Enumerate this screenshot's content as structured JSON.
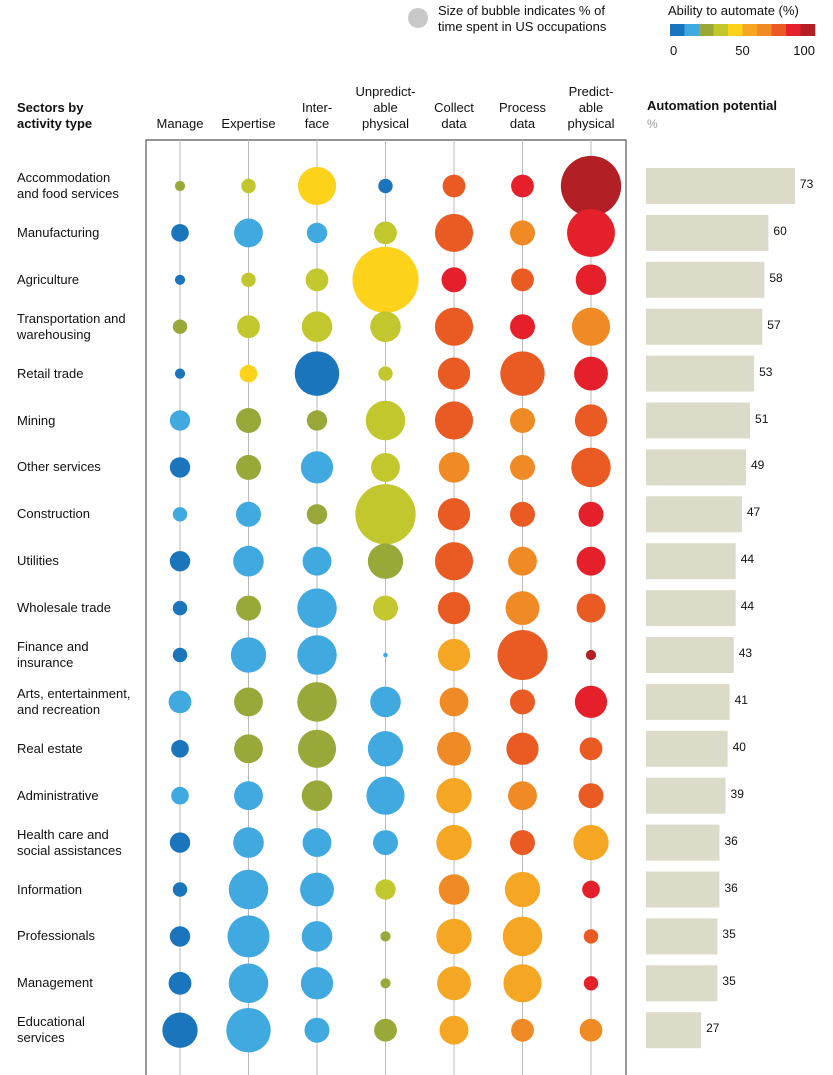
{
  "chart_data": [
    {
      "type": "bubble-matrix",
      "title": "Sectors by\nactivity type",
      "size_legend": "Size of bubble indicates % of\ntime spent in US occupations",
      "color_legend": {
        "title": "Ability to automate (%)",
        "colors": [
          "#1a75bc",
          "#3fa9e0",
          "#9aa83a",
          "#c2c72d",
          "#fcd21b",
          "#f5a623",
          "#f08a24",
          "#ea5b24",
          "#e5202a",
          "#b22025"
        ],
        "lim": [
          0,
          100
        ],
        "ticks": [
          0,
          50,
          100
        ]
      },
      "size_color": "#c8c8c8",
      "columns": [
        "Manage",
        "Expertise",
        "Inter-\nface",
        "Unpredict-\nable\nphysical",
        "Collect\ndata",
        "Process\ndata",
        "Predict-\nable\nphysical"
      ],
      "categories": [
        "Accommodation\nand food services",
        "Manufacturing",
        "Agriculture",
        "Transportation and\nwarehousing",
        "Retail trade",
        "Mining",
        "Other services",
        "Construction",
        "Utilities",
        "Wholesale trade",
        "Finance and\ninsurance",
        "Arts, entertainment,\nand recreation",
        "Real estate",
        "Administrative",
        "Health care and\nsocial assistances",
        "Information",
        "Professionals",
        "Management",
        "Educational\nservices"
      ],
      "values": [
        [
          25,
          35,
          45,
          5,
          75,
          85,
          95
        ],
        [
          5,
          15,
          15,
          35,
          75,
          65,
          85
        ],
        [
          5,
          35,
          35,
          45,
          85,
          75,
          85
        ],
        [
          25,
          35,
          35,
          35,
          75,
          85,
          65
        ],
        [
          5,
          45,
          5,
          35,
          75,
          75,
          85
        ],
        [
          15,
          25,
          25,
          35,
          75,
          65,
          75
        ],
        [
          5,
          25,
          15,
          35,
          65,
          65,
          75
        ],
        [
          15,
          15,
          25,
          35,
          75,
          75,
          85
        ],
        [
          5,
          15,
          15,
          25,
          75,
          65,
          85
        ],
        [
          5,
          25,
          15,
          35,
          75,
          65,
          75
        ],
        [
          5,
          15,
          15,
          15,
          55,
          75,
          95
        ],
        [
          15,
          25,
          25,
          15,
          65,
          75,
          85
        ],
        [
          5,
          25,
          25,
          15,
          65,
          75,
          75
        ],
        [
          15,
          15,
          25,
          15,
          55,
          65,
          75
        ],
        [
          5,
          15,
          15,
          15,
          55,
          75,
          55
        ],
        [
          5,
          15,
          15,
          35,
          65,
          55,
          85
        ],
        [
          5,
          15,
          15,
          25,
          55,
          55,
          75
        ],
        [
          5,
          15,
          15,
          25,
          55,
          55,
          85
        ],
        [
          5,
          15,
          15,
          25,
          55,
          65,
          65
        ]
      ],
      "sizes": [
        [
          1,
          2,
          14,
          2,
          5,
          5,
          35
        ],
        [
          3,
          8,
          4,
          5,
          14,
          6,
          22
        ],
        [
          1,
          2,
          5,
          42,
          6,
          5,
          9
        ],
        [
          2,
          5,
          9,
          9,
          14,
          6,
          14
        ],
        [
          1,
          3,
          19,
          2,
          10,
          19,
          11
        ],
        [
          4,
          6,
          4,
          15,
          14,
          6,
          10
        ],
        [
          4,
          6,
          10,
          8,
          9,
          6,
          15
        ],
        [
          2,
          6,
          4,
          35,
          10,
          6,
          6
        ],
        [
          4,
          9,
          8,
          12,
          14,
          8,
          8
        ],
        [
          2,
          6,
          15,
          6,
          10,
          11,
          8
        ],
        [
          2,
          12,
          15,
          0.2,
          10,
          24,
          1
        ],
        [
          5,
          8,
          15,
          9,
          8,
          6,
          10
        ],
        [
          3,
          8,
          14,
          12,
          11,
          10,
          5
        ],
        [
          3,
          8,
          9,
          14,
          12,
          8,
          6
        ],
        [
          4,
          9,
          8,
          6,
          12,
          6,
          12
        ],
        [
          2,
          15,
          11,
          4,
          9,
          12,
          3
        ],
        [
          4,
          17,
          9,
          1,
          12,
          15,
          2
        ],
        [
          5,
          15,
          10,
          1,
          11,
          14,
          2
        ],
        [
          12,
          19,
          6,
          5,
          8,
          5,
          5
        ]
      ]
    },
    {
      "type": "bar",
      "title": "Automation potential",
      "subtitle": "%",
      "values": [
        73,
        60,
        58,
        57,
        53,
        51,
        49,
        47,
        44,
        44,
        43,
        41,
        40,
        39,
        36,
        36,
        35,
        35,
        27
      ],
      "color": "#dcdac8",
      "xlim": [
        0,
        100
      ]
    }
  ]
}
